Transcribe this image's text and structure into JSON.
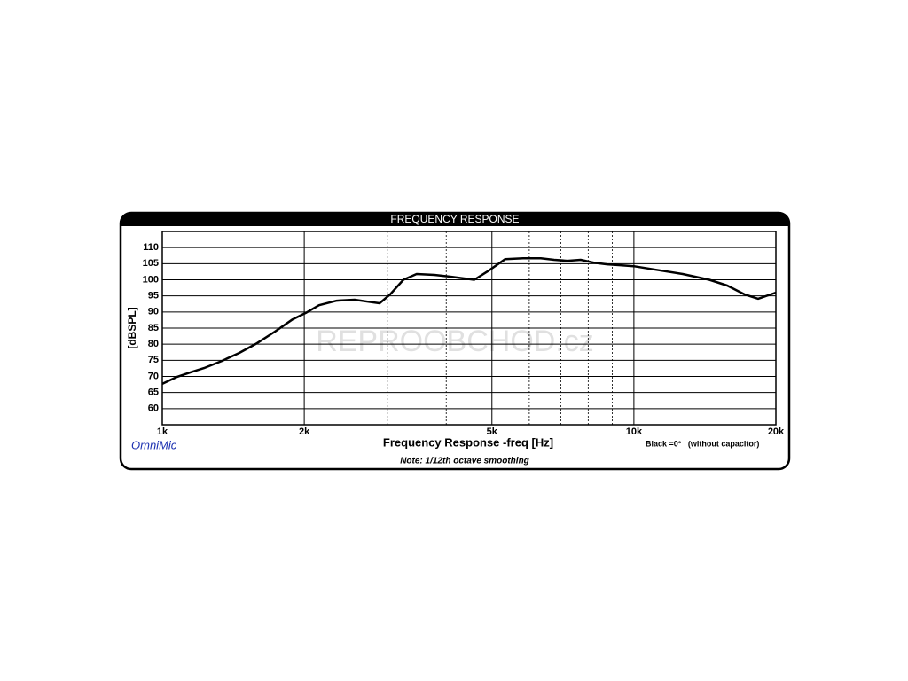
{
  "chart_data": {
    "type": "line",
    "title": "FREQUENCY RESPONSE",
    "x_label": "Frequency Response -freq [Hz]",
    "y_label": "[dBSPL]",
    "brand": "OmniMic",
    "note": "Note: 1/12th octave smoothing",
    "watermark": "REPROOBCHOD.cz",
    "xscale": "log",
    "xlim": [
      1000,
      20000
    ],
    "ylim": [
      55,
      115
    ],
    "xticks": [
      {
        "value": 1000,
        "label": "1k"
      },
      {
        "value": 2000,
        "label": "2k"
      },
      {
        "value": 5000,
        "label": "5k"
      },
      {
        "value": 10000,
        "label": "10k"
      },
      {
        "value": 20000,
        "label": "20k"
      }
    ],
    "xgrid_minor": [
      3000,
      4000,
      6000,
      7000,
      8000,
      9000
    ],
    "yticks": [
      60,
      65,
      70,
      75,
      80,
      85,
      90,
      95,
      100,
      105,
      110
    ],
    "grid": true,
    "x": [
      1000,
      1076,
      1149,
      1226,
      1337,
      1457,
      1588,
      1733,
      1889,
      2015,
      2150,
      2344,
      2557,
      2727,
      2890,
      3040,
      3245,
      3461,
      3776,
      4118,
      4587,
      4893,
      5337,
      5821,
      6349,
      6774,
      7227,
      7711,
      8226,
      8777,
      9365,
      9990,
      11130,
      12690,
      14450,
      15770,
      17200,
      18340,
      20000
    ],
    "series": [
      {
        "name": "Black =0°   (without capacitor)",
        "color": "#000000",
        "values": [
          67.7,
          69.9,
          71.3,
          72.6,
          74.8,
          77.3,
          80.3,
          83.9,
          87.7,
          89.7,
          92.1,
          93.5,
          93.8,
          93.2,
          92.7,
          95.4,
          100,
          101.8,
          101.5,
          100.9,
          100,
          102.6,
          106.4,
          106.7,
          106.7,
          106.2,
          105.9,
          106.2,
          105.3,
          104.8,
          104.5,
          104.2,
          103.1,
          101.8,
          100,
          98.2,
          95.4,
          94.1,
          96
        ]
      }
    ]
  }
}
